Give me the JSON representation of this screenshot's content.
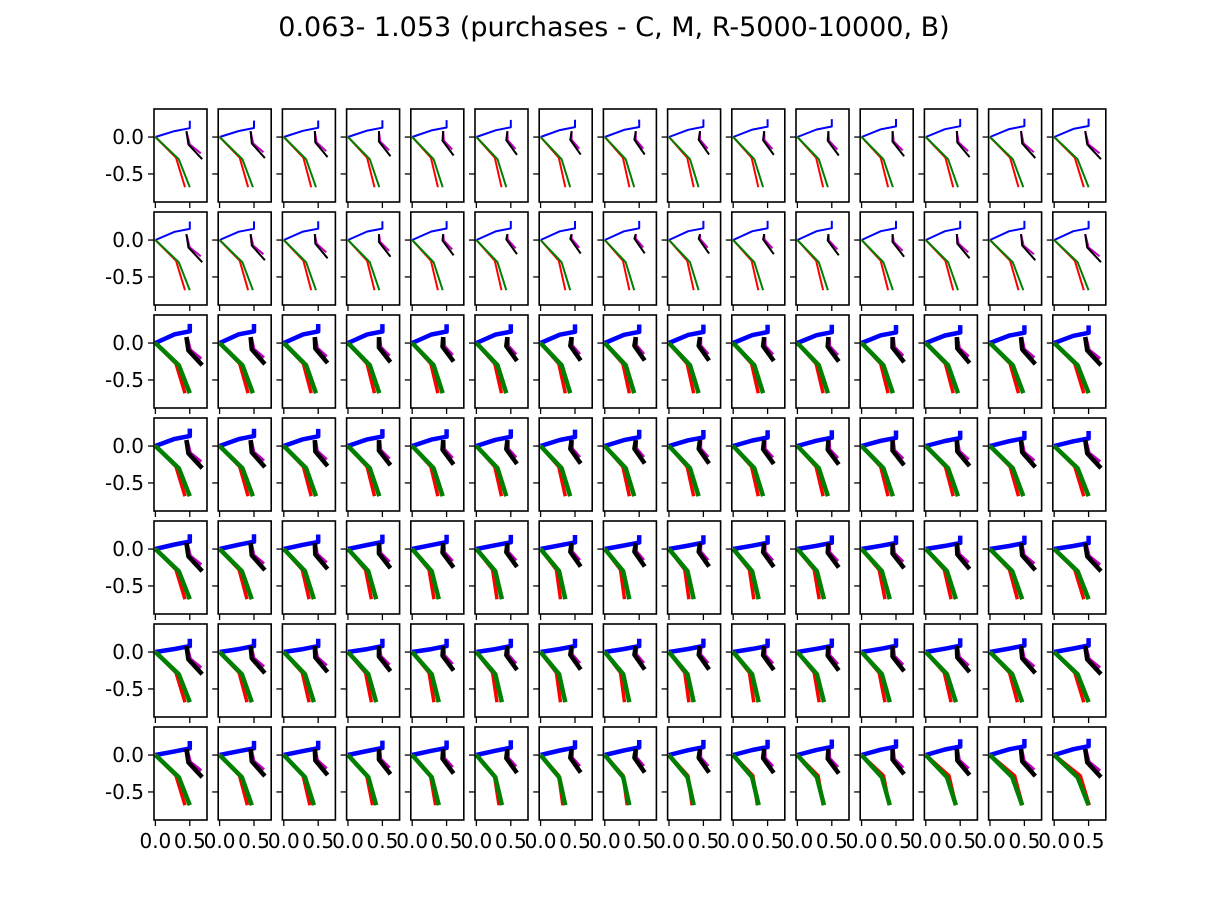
{
  "figure": {
    "title": "0.063- 1.053 (purchases - C, M, R-5000-10000, B)"
  },
  "chart_data": {
    "type": "line",
    "title": "0.063- 1.053 (purchases - C, M, R-5000-10000, B)",
    "xlabel": "",
    "ylabel": "",
    "layout": {
      "rows": 7,
      "cols": 15,
      "sharex": true,
      "sharey": true
    },
    "xlim": [
      -0.02,
      0.75
    ],
    "ylim": [
      -0.88,
      0.38
    ],
    "xticks": [
      0.0,
      0.5
    ],
    "xtick_labels": [
      "0.0",
      "0.5"
    ],
    "yticks": [
      0.0,
      -0.5
    ],
    "ytick_labels": [
      "0.0",
      "-0.5"
    ],
    "grid": false,
    "legend": "none",
    "series": [
      {
        "color": "#0000ff",
        "color_name": "blue"
      },
      {
        "color": "#ff0000",
        "color_name": "red"
      },
      {
        "color": "#008000",
        "color_name": "green"
      },
      {
        "color": "#bf00bf",
        "color_name": "magenta"
      },
      {
        "color": "#000000",
        "color_name": "black"
      }
    ],
    "row_styles": [
      {
        "row": 1,
        "linewidth": "thin"
      },
      {
        "row": 2,
        "linewidth": "thin"
      },
      {
        "row": 3,
        "linewidth": "thick"
      },
      {
        "row": 4,
        "linewidth": "thick"
      },
      {
        "row": 5,
        "linewidth": "thick"
      },
      {
        "row": 6,
        "linewidth": "thick"
      },
      {
        "row": 7,
        "linewidth": "thick"
      }
    ],
    "reference_pose": {
      "blue": [
        [
          0.0,
          0.0
        ],
        [
          0.28,
          0.08
        ],
        [
          0.5,
          0.12
        ],
        [
          0.5,
          0.22
        ]
      ],
      "red": [
        [
          0.0,
          0.0
        ],
        [
          0.3,
          -0.28
        ],
        [
          0.43,
          -0.68
        ]
      ],
      "green": [
        [
          0.0,
          0.0
        ],
        [
          0.34,
          -0.3
        ],
        [
          0.5,
          -0.68
        ]
      ],
      "magenta": [
        [
          0.45,
          0.08
        ],
        [
          0.5,
          -0.1
        ],
        [
          0.66,
          -0.22
        ]
      ],
      "black": [
        [
          0.45,
          0.08
        ],
        [
          0.48,
          -0.1
        ],
        [
          0.68,
          -0.3
        ]
      ]
    }
  }
}
